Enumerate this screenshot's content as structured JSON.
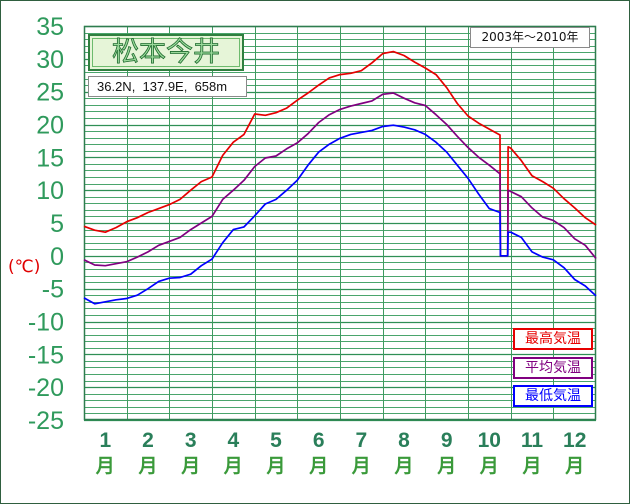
{
  "chart_data": {
    "type": "line",
    "title": "松本今井",
    "location": "36.2N,  137.9E,  658m",
    "period": "2003年～2010年",
    "ylabel": "(℃)",
    "xtick_labels": [
      "1",
      "2",
      "3",
      "4",
      "5",
      "6",
      "7",
      "8",
      "9",
      "10",
      "11",
      "12"
    ],
    "xtick_unit": "月",
    "xlim": [
      0.5,
      12.5
    ],
    "ylim": [
      -25,
      35
    ],
    "ytick_labels": [
      "35",
      "30",
      "25",
      "20",
      "15",
      "10",
      "5",
      "0",
      "-5",
      "-10",
      "-15",
      "-20",
      "-25"
    ],
    "grid": true,
    "grid_step_y": 1,
    "legend_position": "bottom-right",
    "x": [
      0.5,
      0.75,
      1,
      1.25,
      1.5,
      1.75,
      2,
      2.25,
      2.5,
      2.75,
      3,
      3.25,
      3.5,
      3.75,
      4,
      4.25,
      4.5,
      4.75,
      5,
      5.25,
      5.5,
      5.75,
      6,
      6.25,
      6.5,
      6.75,
      7,
      7.25,
      7.5,
      7.75,
      8,
      8.25,
      8.5,
      8.75,
      9,
      9.25,
      9.5,
      9.75,
      10,
      10.25,
      10.26,
      10.43,
      10.44,
      10.5,
      10.75,
      11,
      11.25,
      11.5,
      11.75,
      12,
      12.25,
      12.5
    ],
    "series": [
      {
        "name": "最高気温",
        "color": "#e60000",
        "values": [
          4.5,
          3.9,
          3.6,
          4.3,
          5.2,
          5.8,
          6.6,
          7.2,
          7.8,
          8.6,
          10.0,
          11.3,
          12.0,
          15.3,
          17.3,
          18.5,
          21.6,
          21.4,
          21.8,
          22.5,
          23.7,
          24.8,
          26.0,
          27.1,
          27.6,
          27.8,
          28.2,
          29.4,
          30.8,
          31.1,
          30.5,
          29.5,
          28.6,
          27.6,
          25.6,
          23.2,
          21.3,
          20.2,
          19.3,
          18.4,
          0,
          0,
          16.6,
          16.4,
          14.5,
          12.2,
          11.3,
          10.3,
          8.7,
          7.3,
          5.8,
          4.7
        ]
      },
      {
        "name": "平均気温",
        "color": "#800080",
        "values": [
          -0.6,
          -1.4,
          -1.5,
          -1.2,
          -0.9,
          -0.2,
          0.6,
          1.6,
          2.2,
          2.8,
          4.0,
          5.0,
          6.0,
          8.6,
          10.0,
          11.5,
          13.6,
          14.9,
          15.2,
          16.3,
          17.2,
          18.6,
          20.3,
          21.5,
          22.3,
          22.8,
          23.2,
          23.6,
          24.6,
          24.8,
          24.0,
          23.3,
          22.9,
          21.5,
          20.0,
          18.2,
          16.5,
          15.0,
          13.8,
          12.5,
          0,
          0,
          10.0,
          9.8,
          9.0,
          7.3,
          5.9,
          5.4,
          4.3,
          2.6,
          1.6,
          -0.4
        ]
      },
      {
        "name": "最低気温",
        "color": "#0000ff",
        "values": [
          -6.4,
          -7.3,
          -7.0,
          -6.7,
          -6.5,
          -6.0,
          -5.0,
          -3.9,
          -3.4,
          -3.3,
          -2.8,
          -1.5,
          -0.5,
          2.0,
          4.0,
          4.4,
          6.1,
          7.9,
          8.6,
          10.0,
          11.5,
          13.8,
          15.8,
          17.0,
          17.9,
          18.5,
          18.8,
          19.1,
          19.7,
          19.9,
          19.6,
          19.2,
          18.5,
          17.3,
          15.8,
          13.8,
          11.8,
          9.4,
          7.2,
          6.6,
          0,
          0,
          3.6,
          3.6,
          2.8,
          0.6,
          -0.2,
          -0.6,
          -1.8,
          -3.6,
          -4.6,
          -6.1
        ]
      }
    ]
  }
}
